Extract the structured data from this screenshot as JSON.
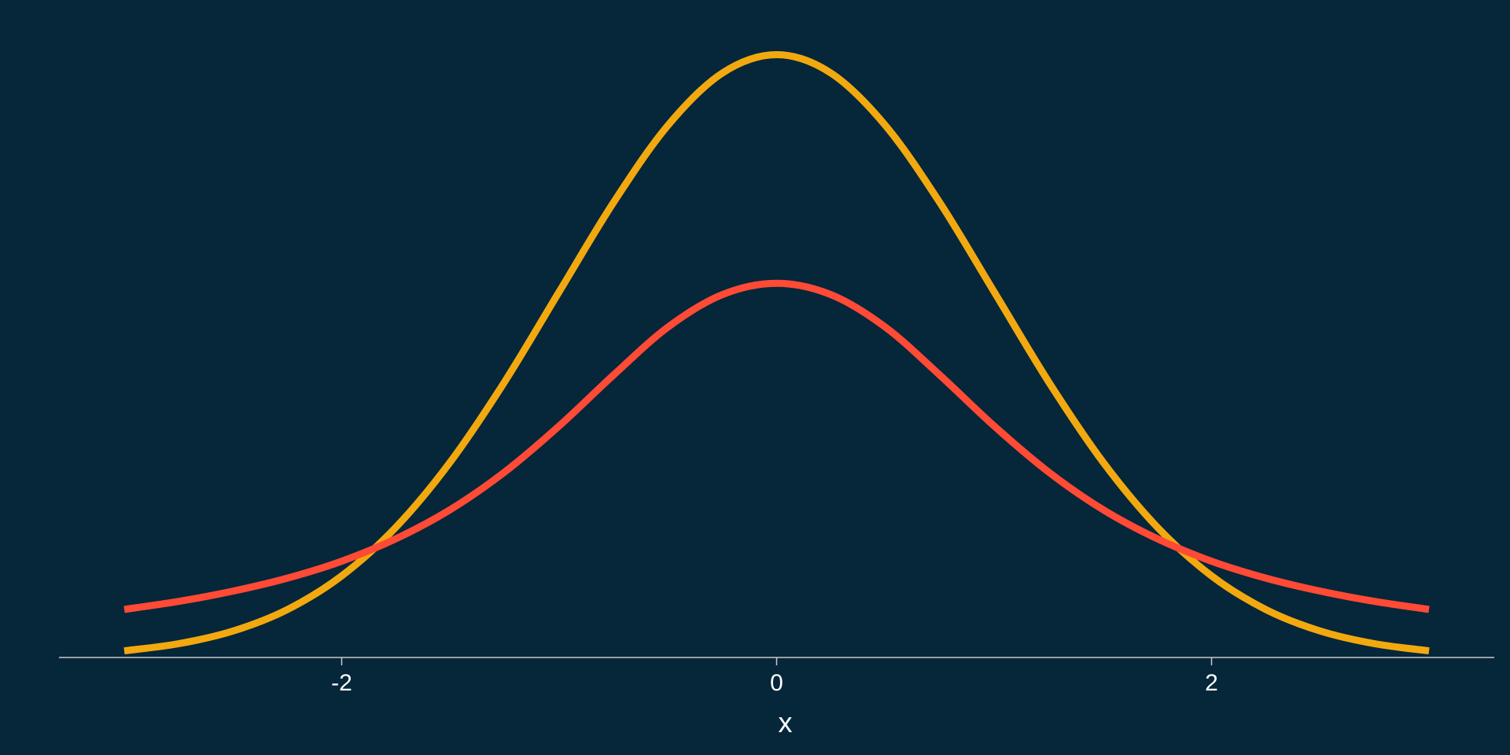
{
  "chart_data": {
    "type": "line",
    "title": "",
    "xlabel": "x",
    "ylabel": "",
    "xlim": [
      -3.3,
      3.3
    ],
    "ylim": [
      0,
      0.42
    ],
    "x_ticks": [
      -2,
      0,
      2
    ],
    "x_tick_labels": [
      "-2",
      "0",
      "2"
    ],
    "grid": false,
    "legend": "none",
    "background_color": "#06263a",
    "axis_color": "#c8c8c8",
    "series": [
      {
        "color": "#f2a90f",
        "x": [
          -3.0,
          -2.75,
          -2.5,
          -2.25,
          -2.0,
          -1.75,
          -1.5,
          -1.25,
          -1.0,
          -0.75,
          -0.5,
          -0.25,
          0.0,
          0.25,
          0.5,
          0.75,
          1.0,
          1.25,
          1.5,
          1.75,
          2.0,
          2.25,
          2.5,
          2.75,
          3.0
        ],
        "y": [
          0.0044,
          0.0091,
          0.0175,
          0.0317,
          0.054,
          0.0863,
          0.1295,
          0.1826,
          0.242,
          0.3011,
          0.3521,
          0.3867,
          0.3989,
          0.3867,
          0.3521,
          0.3011,
          0.242,
          0.1826,
          0.1295,
          0.0863,
          0.054,
          0.0317,
          0.0175,
          0.0091,
          0.0044
        ]
      },
      {
        "color": "#ff4a36",
        "x": [
          -3.0,
          -2.75,
          -2.5,
          -2.25,
          -2.0,
          -1.75,
          -1.5,
          -1.25,
          -1.0,
          -0.75,
          -0.5,
          -0.25,
          0.0,
          0.25,
          0.5,
          0.75,
          1.0,
          1.25,
          1.5,
          1.75,
          2.0,
          2.25,
          2.5,
          2.75,
          3.0
        ],
        "y": [
          0.0318,
          0.0371,
          0.0439,
          0.0525,
          0.0637,
          0.0786,
          0.0979,
          0.1228,
          0.1532,
          0.1869,
          0.2186,
          0.2401,
          0.2476,
          0.2401,
          0.2186,
          0.1869,
          0.1532,
          0.1228,
          0.0979,
          0.0786,
          0.0637,
          0.0525,
          0.0439,
          0.0371,
          0.0318
        ]
      }
    ]
  }
}
